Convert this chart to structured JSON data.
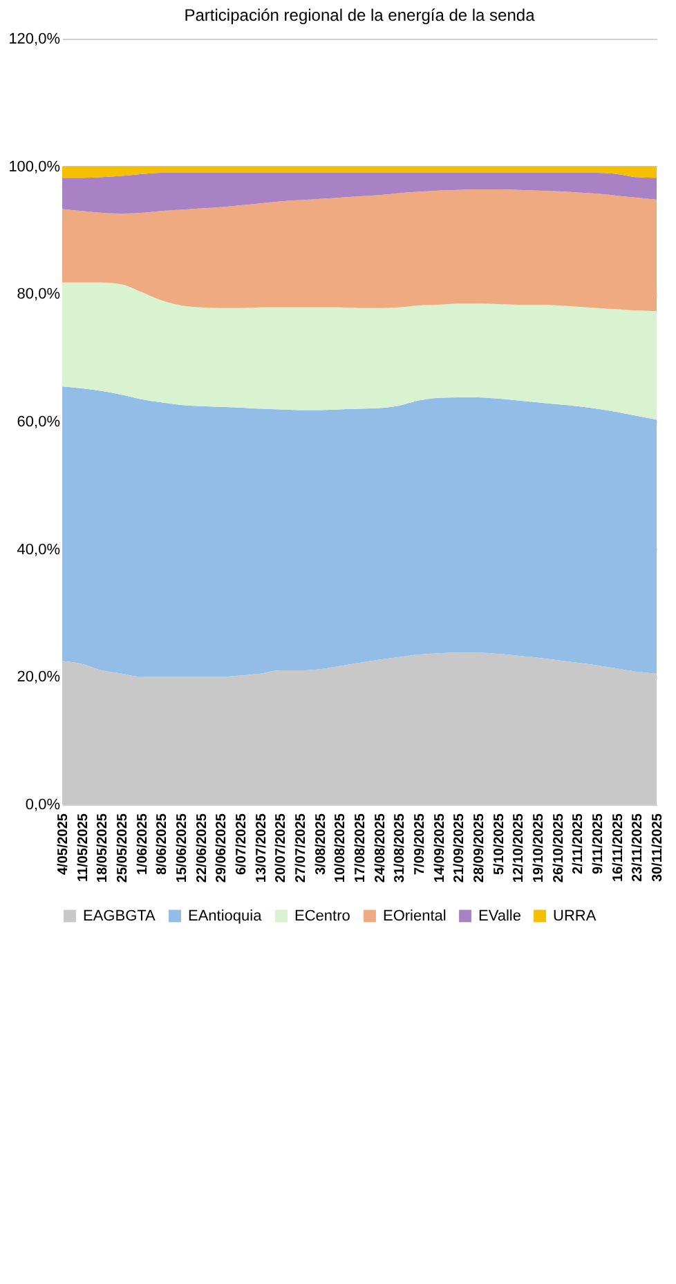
{
  "chart_data": {
    "type": "area",
    "stacked": true,
    "title": "Participación regional de la energía de la senda",
    "categories": [
      "4/05/2025",
      "11/05/2025",
      "18/05/2025",
      "25/05/2025",
      "1/06/2025",
      "8/06/2025",
      "15/06/2025",
      "22/06/2025",
      "29/06/2025",
      "6/07/2025",
      "13/07/2025",
      "20/07/2025",
      "27/07/2025",
      "3/08/2025",
      "10/08/2025",
      "17/08/2025",
      "24/08/2025",
      "31/08/2025",
      "7/09/2025",
      "14/09/2025",
      "21/09/2025",
      "28/09/2025",
      "5/10/2025",
      "12/10/2025",
      "19/10/2025",
      "26/10/2025",
      "2/11/2025",
      "9/11/2025",
      "16/11/2025",
      "23/11/2025",
      "30/11/2025"
    ],
    "series": [
      {
        "name": "EAGBGTA",
        "color": "#c8c8c8",
        "values": [
          22.5,
          22,
          21,
          20.5,
          20,
          20,
          20,
          20,
          20,
          20.2,
          20.5,
          21,
          21,
          21.2,
          21.7,
          22.2,
          22.7,
          23.1,
          23.5,
          23.7,
          23.8,
          23.8,
          23.6,
          23.3,
          23,
          22.6,
          22.2,
          21.8,
          21.3,
          20.8,
          20.5
        ]
      },
      {
        "name": "EAntioquia",
        "color": "#92bde6",
        "values": [
          43.0,
          43.2,
          43.8,
          43.7,
          43.5,
          43.0,
          42.6,
          42.4,
          42.3,
          42.0,
          41.5,
          40.9,
          40.8,
          40.6,
          40.2,
          39.8,
          39.4,
          39.4,
          39.8,
          40.0,
          40.0,
          40.0,
          40.0,
          40.0,
          40.0,
          40.1,
          40.2,
          40.2,
          40.2,
          40.1,
          39.8
        ]
      },
      {
        "name": "ECentro",
        "color": "#d9f2d0",
        "values": [
          16.3,
          16.6,
          17.0,
          17.3,
          16.8,
          16.0,
          15.6,
          15.5,
          15.5,
          15.6,
          15.9,
          16.0,
          16.1,
          16.1,
          16.0,
          15.8,
          15.7,
          15.4,
          14.9,
          14.6,
          14.7,
          14.7,
          14.8,
          15.0,
          15.3,
          15.5,
          15.6,
          15.8,
          16.1,
          16.5,
          17.0
        ]
      },
      {
        "name": "EOriental",
        "color": "#f0aa82",
        "values": [
          11.5,
          11.2,
          10.9,
          11.1,
          12.4,
          14.0,
          15.0,
          15.5,
          15.8,
          16.1,
          16.3,
          16.6,
          16.8,
          17.0,
          17.2,
          17.5,
          17.7,
          17.9,
          17.8,
          17.9,
          17.8,
          17.9,
          18.0,
          18.0,
          17.9,
          17.9,
          17.9,
          17.9,
          17.8,
          17.7,
          17.5
        ]
      },
      {
        "name": "EValle",
        "color": "#a882c4",
        "values": [
          4.9,
          5.2,
          5.6,
          5.9,
          6.1,
          6.0,
          5.8,
          5.6,
          5.4,
          5.1,
          4.8,
          4.5,
          4.3,
          4.1,
          3.9,
          3.7,
          3.5,
          3.2,
          3.0,
          2.8,
          2.7,
          2.6,
          2.6,
          2.7,
          2.8,
          2.9,
          3.1,
          3.3,
          3.4,
          3.2,
          3.4
        ]
      },
      {
        "name": "URRA",
        "color": "#f5c000",
        "values": [
          1.8,
          1.8,
          1.7,
          1.5,
          1.2,
          1.0,
          1.0,
          1.0,
          1.0,
          1.0,
          1.0,
          1.0,
          1.0,
          1.0,
          1.0,
          1.0,
          1.0,
          1.0,
          1.0,
          1.0,
          1.0,
          1.0,
          1.0,
          1.0,
          1.0,
          1.0,
          1.0,
          1.0,
          1.2,
          1.7,
          1.8
        ]
      }
    ],
    "ylim": [
      0,
      120
    ],
    "yticks": [
      {
        "value": 0,
        "label": "0,0%"
      },
      {
        "value": 20,
        "label": "20,0%"
      },
      {
        "value": 40,
        "label": "40,0%"
      },
      {
        "value": 60,
        "label": "60,0%"
      },
      {
        "value": 80,
        "label": "80,0%"
      },
      {
        "value": 100,
        "label": "100,0%"
      },
      {
        "value": 120,
        "label": "120,0%"
      }
    ],
    "grid": "y",
    "legend": "bottom"
  }
}
